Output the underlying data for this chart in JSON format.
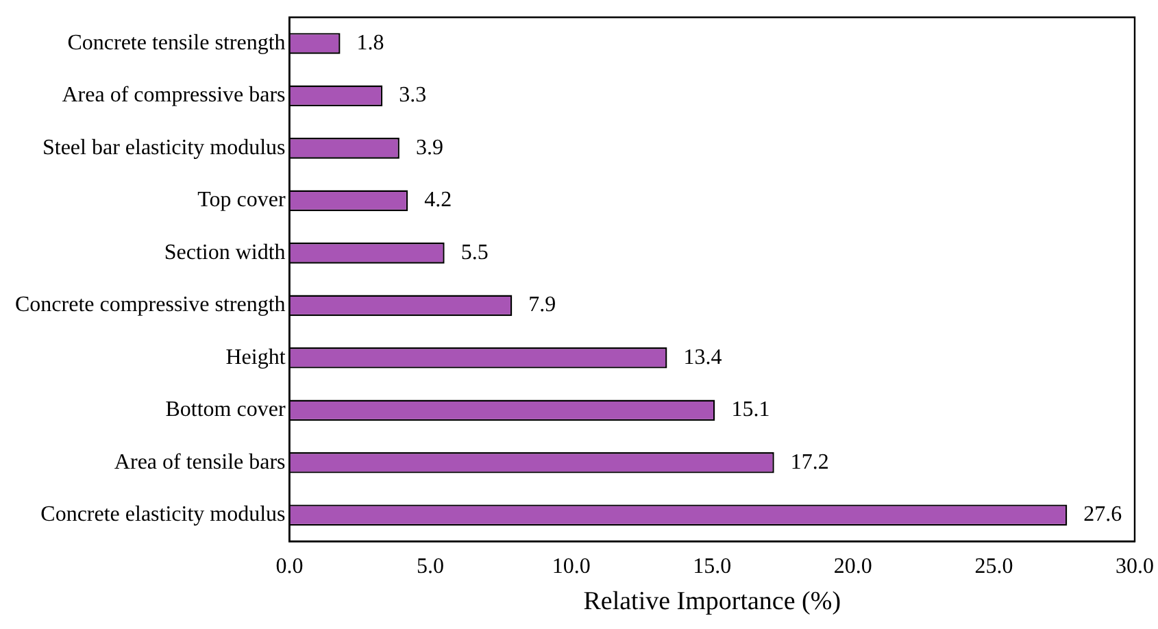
{
  "chart_data": {
    "type": "bar",
    "orientation": "horizontal",
    "xlabel": "Relative Importance (%)",
    "categories": [
      "Concrete tensile strength",
      "Area of compressive bars",
      "Steel bar elasticity modulus",
      "Top cover",
      "Section width",
      "Concrete compressive strength",
      "Height",
      "Bottom cover",
      "Area of tensile bars",
      "Concrete elasticity modulus"
    ],
    "values": [
      1.8,
      3.3,
      3.9,
      4.2,
      5.5,
      7.9,
      13.4,
      15.1,
      17.2,
      27.6
    ],
    "color": "#a855b5",
    "xlim": [
      0,
      30
    ],
    "xticks": [
      {
        "value": 0,
        "label": "0.0"
      },
      {
        "value": 5,
        "label": "5.0"
      },
      {
        "value": 10,
        "label": "10.0"
      },
      {
        "value": 15,
        "label": "15.0"
      },
      {
        "value": 20,
        "label": "20.0"
      },
      {
        "value": 25,
        "label": "25.0"
      },
      {
        "value": 30,
        "label": "30.0"
      }
    ],
    "data_labels": true,
    "grid": false,
    "legend": false
  }
}
